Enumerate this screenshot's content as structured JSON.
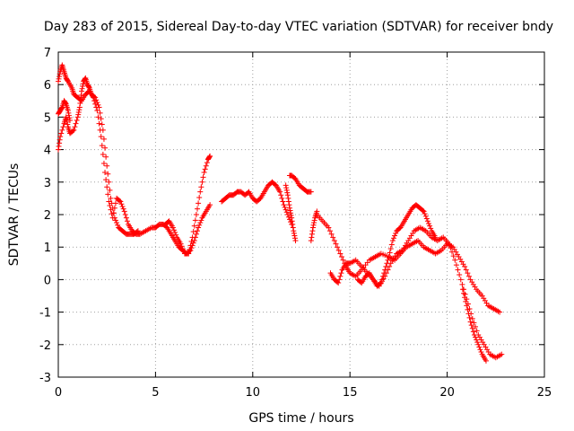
{
  "chart_data": {
    "type": "scatter",
    "title": "Day 283 of 2015, Sidereal Day-to-day VTEC variation (SDTVAR) for receiver bndy",
    "xlabel": "GPS time / hours",
    "ylabel": "SDTVAR / TECUs",
    "xlim": [
      0,
      25
    ],
    "ylim": [
      -3,
      7
    ],
    "xticks": [
      "0",
      "5",
      "10",
      "15",
      "20",
      "25"
    ],
    "yticks": [
      "-3",
      "-2",
      "-1",
      "0",
      "1",
      "2",
      "3",
      "4",
      "5",
      "6",
      "7"
    ],
    "grid": true,
    "marker": "+",
    "color": "#ff0000",
    "series": [
      {
        "x": [
          0.0,
          0.1,
          0.2,
          0.3,
          0.4,
          0.5,
          0.7,
          0.8,
          1.0,
          1.2,
          1.4,
          1.6,
          1.8,
          2.0,
          2.2,
          2.4,
          2.6,
          2.8,
          3.0,
          3.2,
          3.4,
          3.6,
          3.8,
          4.0,
          4.2,
          4.5,
          4.8,
          5.0,
          5.2,
          5.4,
          5.6,
          5.8,
          6.0,
          6.2,
          6.4,
          6.6,
          6.8,
          7.0,
          7.2,
          7.4,
          7.6,
          7.8
        ],
        "y": [
          6.1,
          6.4,
          6.6,
          6.4,
          6.2,
          6.1,
          5.9,
          5.7,
          5.6,
          5.5,
          5.7,
          5.8,
          5.6,
          5.2,
          4.4,
          3.3,
          2.4,
          1.9,
          2.5,
          2.4,
          2.1,
          1.7,
          1.5,
          1.4,
          1.4,
          1.5,
          1.6,
          1.6,
          1.7,
          1.7,
          1.6,
          1.4,
          1.2,
          1.0,
          0.9,
          0.8,
          0.9,
          1.2,
          1.6,
          1.9,
          2.1,
          2.3
        ]
      },
      {
        "x": [
          0.0,
          0.1,
          0.3,
          0.4,
          0.5,
          0.6,
          0.8,
          1.0,
          1.1,
          1.2,
          1.3,
          1.4,
          1.5,
          1.6,
          1.7,
          1.9,
          2.1,
          2.3,
          2.5,
          2.7,
          2.9,
          3.1,
          3.3,
          3.5,
          3.7,
          3.9,
          4.1
        ],
        "y": [
          4.0,
          4.4,
          4.8,
          5.0,
          4.7,
          4.5,
          4.6,
          5.0,
          5.3,
          5.8,
          6.1,
          6.2,
          6.0,
          5.9,
          5.7,
          5.6,
          5.3,
          4.6,
          3.5,
          2.5,
          1.9,
          1.6,
          1.5,
          1.4,
          1.4,
          1.4,
          1.5
        ]
      },
      {
        "x": [
          0.0,
          0.1,
          0.2,
          0.3,
          0.4,
          0.5,
          0.6
        ],
        "y": [
          5.1,
          5.2,
          5.3,
          5.5,
          5.4,
          5.2,
          4.9
        ]
      },
      {
        "x": [
          5.5,
          5.7,
          5.9,
          6.1,
          6.3,
          6.5,
          6.7,
          6.9,
          7.1,
          7.3,
          7.5,
          7.7,
          7.8
        ],
        "y": [
          1.7,
          1.8,
          1.6,
          1.3,
          1.1,
          0.8,
          0.8,
          1.3,
          2.0,
          2.7,
          3.3,
          3.7,
          3.8
        ]
      },
      {
        "x": [
          8.4,
          8.6,
          8.8,
          9.0,
          9.2,
          9.4,
          9.6,
          9.8,
          10.0,
          10.2,
          10.4,
          10.6,
          10.8,
          11.0,
          11.2,
          11.4,
          11.6,
          11.8,
          12.0
        ],
        "y": [
          2.4,
          2.5,
          2.6,
          2.6,
          2.7,
          2.7,
          2.6,
          2.7,
          2.5,
          2.4,
          2.5,
          2.7,
          2.9,
          3.0,
          2.9,
          2.7,
          2.3,
          2.0,
          1.7
        ]
      },
      {
        "x": [
          11.7,
          11.8,
          11.9,
          12.0,
          12.1,
          12.2
        ],
        "y": [
          2.9,
          2.6,
          2.2,
          1.9,
          1.5,
          1.2
        ]
      },
      {
        "x": [
          11.9,
          12.0,
          12.2,
          12.4,
          12.6,
          12.8,
          13.0
        ],
        "y": [
          3.2,
          3.2,
          3.1,
          2.9,
          2.8,
          2.7,
          2.7
        ]
      },
      {
        "x": [
          13.0,
          13.1,
          13.2,
          13.3
        ],
        "y": [
          1.2,
          1.6,
          1.9,
          2.1
        ]
      },
      {
        "x": [
          13.3,
          13.6,
          13.9,
          14.2,
          14.5,
          14.8,
          15.0,
          15.3,
          15.6,
          16.0,
          16.3,
          16.6,
          17.0,
          17.3,
          17.6,
          17.9,
          18.2,
          18.5,
          18.8,
          19.1,
          19.4,
          19.7,
          20.0,
          20.3,
          20.6,
          20.9,
          21.2,
          21.5,
          21.8,
          22.1,
          22.4,
          22.7
        ],
        "y": [
          2.0,
          1.8,
          1.6,
          1.2,
          0.8,
          0.4,
          0.2,
          0.1,
          0.3,
          0.6,
          0.7,
          0.8,
          0.7,
          0.6,
          0.8,
          1.0,
          1.1,
          1.2,
          1.0,
          0.9,
          0.8,
          0.9,
          1.1,
          1.0,
          0.7,
          0.4,
          0.0,
          -0.3,
          -0.5,
          -0.8,
          -0.9,
          -1.0
        ]
      },
      {
        "x": [
          14.0,
          14.2,
          14.4,
          14.6,
          14.8,
          15.0,
          15.3,
          15.6,
          15.9,
          16.2,
          16.5,
          16.8,
          17.1,
          17.4,
          17.7,
          18.0,
          18.3,
          18.6,
          18.9,
          19.2,
          19.5,
          19.8,
          20.1,
          20.4,
          20.7,
          21.0,
          21.3,
          21.6,
          21.9,
          22.2,
          22.5,
          22.8
        ],
        "y": [
          0.2,
          0.0,
          -0.1,
          0.3,
          0.5,
          0.5,
          0.6,
          0.4,
          0.2,
          0.0,
          -0.2,
          0.1,
          0.5,
          0.8,
          0.9,
          1.2,
          1.5,
          1.6,
          1.5,
          1.3,
          1.2,
          1.3,
          1.1,
          0.6,
          0.0,
          -0.6,
          -1.2,
          -1.7,
          -2.0,
          -2.3,
          -2.4,
          -2.3
        ]
      },
      {
        "x": [
          15.4,
          15.6,
          15.8,
          16.0,
          16.2,
          16.4,
          16.6,
          16.8,
          17.0,
          17.2,
          17.4,
          17.6,
          17.8,
          18.0,
          18.2,
          18.4,
          18.6,
          18.8,
          19.0,
          19.2,
          19.4
        ],
        "y": [
          0.0,
          -0.1,
          0.1,
          0.2,
          0.0,
          -0.2,
          -0.1,
          0.3,
          0.7,
          1.2,
          1.5,
          1.6,
          1.8,
          2.0,
          2.2,
          2.3,
          2.2,
          2.1,
          1.8,
          1.5,
          1.3
        ]
      },
      {
        "x": [
          20.8,
          21.0,
          21.2,
          21.4,
          21.6,
          21.8,
          22.0
        ],
        "y": [
          -0.3,
          -0.8,
          -1.3,
          -1.7,
          -2.0,
          -2.3,
          -2.5
        ]
      }
    ]
  }
}
